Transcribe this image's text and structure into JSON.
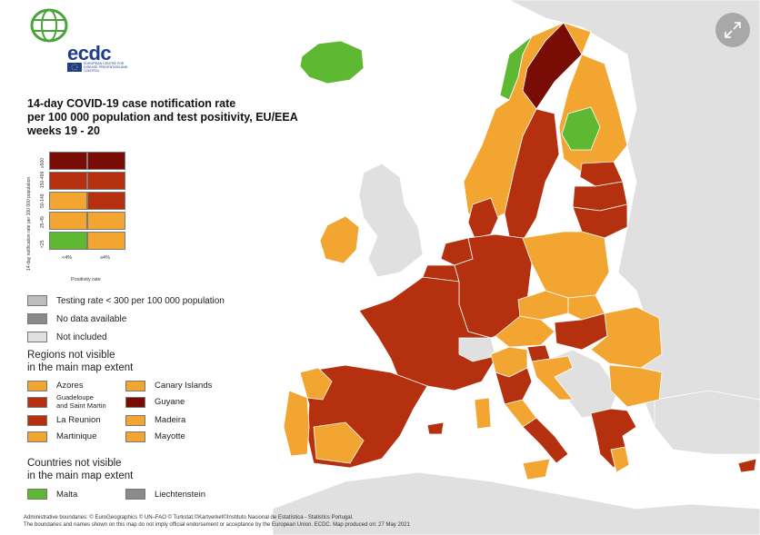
{
  "title": {
    "line1": "14-day COVID-19 case notification rate",
    "line2": "per 100 000 population and test positivity, EU/EEA",
    "line3": "weeks 19 - 20"
  },
  "logo": {
    "name": "ecdc",
    "subtitle": "European Centre for Disease Prevention and Control"
  },
  "colors": {
    "dark_red": "#7a0c06",
    "red": "#b5300f",
    "dark_orange": "#c2401a",
    "orange": "#f3a531",
    "green": "#5eb832",
    "grey": "#bdbdbd",
    "dark_grey": "#8a8a8a",
    "light_grey": "#e0e0e0",
    "sea": "#ffffff"
  },
  "matrix": {
    "y_axis_label": "14-day notification rate per 100 000 population",
    "x_axis_label": "Positivity rate",
    "rows": [
      "≥500",
      "150-499",
      "50-149",
      "25-49",
      "<25"
    ],
    "cols": [
      "<4%",
      "≥4%"
    ],
    "cells": [
      [
        "#7a0c06",
        "#7a0c06"
      ],
      [
        "#b5300f",
        "#b5300f"
      ],
      [
        "#f3a531",
        "#b5300f"
      ],
      [
        "#f3a531",
        "#f3a531"
      ],
      [
        "#5eb832",
        "#f3a531"
      ]
    ]
  },
  "legend": {
    "testing_rate": "Testing rate < 300 per 100 000 population",
    "no_data": "No data available",
    "not_included": "Not included"
  },
  "regions": {
    "title_line1": "Regions not visible",
    "title_line2": "in the main map extent",
    "items": [
      {
        "label": "Azores",
        "color": "#f3a531"
      },
      {
        "label": "Canary Islands",
        "color": "#f3a531"
      },
      {
        "label": "Guadeloupe",
        "label2": "and Saint Martin",
        "color": "#b5300f"
      },
      {
        "label": "Guyane",
        "color": "#7a0c06"
      },
      {
        "label": "La Reunion",
        "color": "#b5300f"
      },
      {
        "label": "Madeira",
        "color": "#f3a531"
      },
      {
        "label": "Martinique",
        "color": "#f3a531"
      },
      {
        "label": "Mayotte",
        "color": "#f3a531"
      }
    ]
  },
  "countries": {
    "title_line1": "Countries not visible",
    "title_line2": "in the main map extent",
    "items": [
      {
        "label": "Malta",
        "color": "#5eb832"
      },
      {
        "label": "Liechtenstein",
        "color": "#8a8a8a"
      }
    ]
  },
  "footer": {
    "line1": "Administrative boundaries: © EuroGeographics © UN–FAO © Turkstat.©Kartverket©Instituto Nacional de Estatística - Statistics Portugal.",
    "line2": "The boundaries and names shown on this map do not imply official endorsement or acceptance by the European Union. ECDC. Map produced on: 27 May 2021"
  },
  "controls": {
    "expand_icon": "expand-arrows-icon"
  }
}
